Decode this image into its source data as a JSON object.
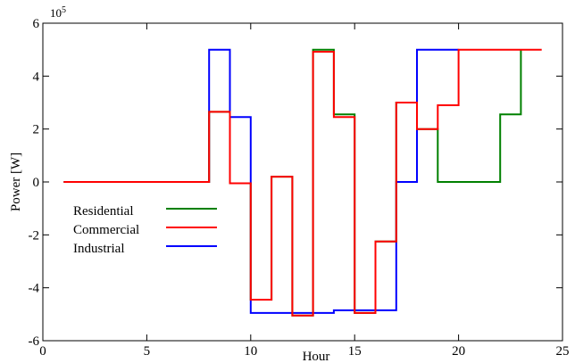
{
  "chart_data": {
    "type": "line",
    "xlabel": "Hour",
    "ylabel": "Power [W]",
    "y_multiplier": "10",
    "y_multiplier_exp": "5",
    "xlim": [
      0,
      25
    ],
    "ylim": [
      -6,
      6
    ],
    "x_ticks": [
      0,
      5,
      10,
      15,
      20,
      25
    ],
    "y_ticks": [
      -6,
      -4,
      -2,
      0,
      2,
      4,
      6
    ],
    "grid": false,
    "legend_position": "middle-left",
    "series": [
      {
        "name": "Residential",
        "color": "#008000",
        "x": [
          1,
          8,
          8,
          9,
          9,
          10,
          10,
          11,
          11,
          12,
          12,
          13,
          13,
          14,
          14,
          15,
          15,
          16,
          16,
          17,
          17,
          18,
          18,
          19,
          19,
          22,
          22,
          23,
          23
        ],
        "y": [
          0,
          0,
          2.65,
          2.65,
          -0.05,
          -0.05,
          -4.45,
          -4.45,
          0.2,
          0.2,
          -5.05,
          -5.05,
          5.0,
          5.0,
          2.55,
          2.55,
          -4.95,
          -4.95,
          -2.25,
          -2.25,
          3.0,
          3.0,
          2.0,
          2.0,
          0,
          0,
          2.55,
          2.55,
          5.0
        ]
      },
      {
        "name": "Commercial",
        "color": "#ff0000",
        "x": [
          1,
          8,
          8,
          9,
          9,
          10,
          10,
          11,
          11,
          12,
          12,
          13,
          13,
          14,
          14,
          15,
          15,
          16,
          16,
          17,
          17,
          18,
          18,
          19,
          19,
          20,
          20,
          24
        ],
        "y": [
          0,
          0,
          2.65,
          2.65,
          -0.05,
          -0.05,
          -4.45,
          -4.45,
          0.2,
          0.2,
          -5.05,
          -5.05,
          4.92,
          4.92,
          2.45,
          2.45,
          -4.95,
          -4.95,
          -2.25,
          -2.25,
          3.0,
          3.0,
          2.0,
          2.0,
          2.9,
          2.9,
          5.0,
          5.0
        ]
      },
      {
        "name": "Industrial",
        "color": "#0000ff",
        "x": [
          1,
          8,
          8,
          9,
          9,
          10,
          10,
          14,
          14,
          16,
          16,
          17,
          17,
          18,
          18,
          20
        ],
        "y": [
          0,
          0,
          5.0,
          5.0,
          2.45,
          2.45,
          -4.95,
          -4.95,
          -4.85,
          -4.85,
          -4.85,
          -4.85,
          0,
          0,
          5.0,
          5.0
        ]
      }
    ]
  }
}
